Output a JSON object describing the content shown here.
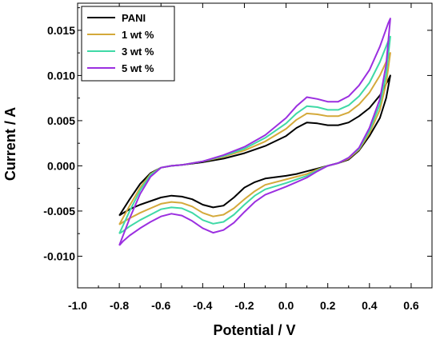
{
  "chart_data": {
    "type": "line",
    "xlabel": "Potential / V",
    "ylabel": "Current / A",
    "xlim": [
      -1.0,
      0.7
    ],
    "ylim": [
      -0.0135,
      0.018
    ],
    "x_ticks": [
      "-1.0",
      "-0.8",
      "-0.6",
      "-0.4",
      "-0.2",
      "0.0",
      "0.2",
      "0.4",
      "0.6"
    ],
    "y_ticks": [
      "-0.010",
      "-0.005",
      "0.000",
      "0.005",
      "0.010",
      "0.015"
    ],
    "grid": false,
    "legend_position": "top-left",
    "series": [
      {
        "name": "PANI",
        "color": "#000000",
        "points": [
          [
            -0.8,
            -0.0055
          ],
          [
            -0.75,
            -0.0037
          ],
          [
            -0.7,
            -0.002
          ],
          [
            -0.65,
            -0.0008
          ],
          [
            -0.6,
            -0.0002
          ],
          [
            -0.55,
            0.0
          ],
          [
            -0.5,
            0.0001
          ],
          [
            -0.4,
            0.0004
          ],
          [
            -0.3,
            0.0008
          ],
          [
            -0.2,
            0.0014
          ],
          [
            -0.1,
            0.0022
          ],
          [
            0.0,
            0.0033
          ],
          [
            0.05,
            0.0042
          ],
          [
            0.1,
            0.0048
          ],
          [
            0.15,
            0.0047
          ],
          [
            0.2,
            0.0045
          ],
          [
            0.25,
            0.0045
          ],
          [
            0.3,
            0.0048
          ],
          [
            0.35,
            0.0055
          ],
          [
            0.4,
            0.0064
          ],
          [
            0.45,
            0.0078
          ],
          [
            0.49,
            0.0095
          ],
          [
            0.5,
            0.01
          ],
          [
            0.48,
            0.0075
          ],
          [
            0.45,
            0.0053
          ],
          [
            0.4,
            0.0033
          ],
          [
            0.35,
            0.0017
          ],
          [
            0.3,
            0.0007
          ],
          [
            0.25,
            0.0003
          ],
          [
            0.2,
            0.0
          ],
          [
            0.15,
            -0.0003
          ],
          [
            0.1,
            -0.0006
          ],
          [
            0.05,
            -0.0009
          ],
          [
            0.0,
            -0.0011
          ],
          [
            -0.1,
            -0.0014
          ],
          [
            -0.15,
            -0.0018
          ],
          [
            -0.2,
            -0.0024
          ],
          [
            -0.25,
            -0.0035
          ],
          [
            -0.3,
            -0.0044
          ],
          [
            -0.35,
            -0.0046
          ],
          [
            -0.4,
            -0.0043
          ],
          [
            -0.45,
            -0.0037
          ],
          [
            -0.5,
            -0.0034
          ],
          [
            -0.55,
            -0.0033
          ],
          [
            -0.6,
            -0.0035
          ],
          [
            -0.65,
            -0.0039
          ],
          [
            -0.7,
            -0.0043
          ],
          [
            -0.75,
            -0.0048
          ],
          [
            -0.78,
            -0.0052
          ],
          [
            -0.8,
            -0.0055
          ]
        ]
      },
      {
        "name": "1 wt %",
        "color": "#d4a93a",
        "points": [
          [
            -0.8,
            -0.0065
          ],
          [
            -0.75,
            -0.0044
          ],
          [
            -0.7,
            -0.0024
          ],
          [
            -0.65,
            -0.0009
          ],
          [
            -0.6,
            -0.0002
          ],
          [
            -0.55,
            0.0
          ],
          [
            -0.5,
            0.0001
          ],
          [
            -0.4,
            0.0005
          ],
          [
            -0.3,
            0.001
          ],
          [
            -0.2,
            0.0017
          ],
          [
            -0.1,
            0.0027
          ],
          [
            0.0,
            0.0041
          ],
          [
            0.05,
            0.0051
          ],
          [
            0.1,
            0.0058
          ],
          [
            0.15,
            0.0057
          ],
          [
            0.2,
            0.0055
          ],
          [
            0.25,
            0.0055
          ],
          [
            0.3,
            0.0059
          ],
          [
            0.35,
            0.0068
          ],
          [
            0.4,
            0.0081
          ],
          [
            0.45,
            0.01
          ],
          [
            0.49,
            0.012
          ],
          [
            0.5,
            0.0125
          ],
          [
            0.48,
            0.0091
          ],
          [
            0.45,
            0.0062
          ],
          [
            0.4,
            0.0036
          ],
          [
            0.35,
            0.0018
          ],
          [
            0.3,
            0.0008
          ],
          [
            0.25,
            0.0003
          ],
          [
            0.2,
            0.0
          ],
          [
            0.15,
            -0.0004
          ],
          [
            0.1,
            -0.0009
          ],
          [
            0.05,
            -0.0012
          ],
          [
            0.0,
            -0.0015
          ],
          [
            -0.1,
            -0.0021
          ],
          [
            -0.15,
            -0.0028
          ],
          [
            -0.2,
            -0.0037
          ],
          [
            -0.25,
            -0.0047
          ],
          [
            -0.3,
            -0.0054
          ],
          [
            -0.35,
            -0.0056
          ],
          [
            -0.4,
            -0.0052
          ],
          [
            -0.45,
            -0.0045
          ],
          [
            -0.5,
            -0.0041
          ],
          [
            -0.55,
            -0.004
          ],
          [
            -0.6,
            -0.0042
          ],
          [
            -0.65,
            -0.0047
          ],
          [
            -0.7,
            -0.0052
          ],
          [
            -0.75,
            -0.0058
          ],
          [
            -0.78,
            -0.0062
          ],
          [
            -0.8,
            -0.0065
          ]
        ]
      },
      {
        "name": "3 wt %",
        "color": "#3fd9a6",
        "points": [
          [
            -0.8,
            -0.0075
          ],
          [
            -0.75,
            -0.005
          ],
          [
            -0.7,
            -0.0027
          ],
          [
            -0.65,
            -0.001
          ],
          [
            -0.6,
            -0.0002
          ],
          [
            -0.55,
            0.0
          ],
          [
            -0.5,
            0.0001
          ],
          [
            -0.4,
            0.0005
          ],
          [
            -0.3,
            0.0011
          ],
          [
            -0.2,
            0.0019
          ],
          [
            -0.1,
            0.0031
          ],
          [
            0.0,
            0.0047
          ],
          [
            0.05,
            0.0058
          ],
          [
            0.1,
            0.0066
          ],
          [
            0.15,
            0.0065
          ],
          [
            0.2,
            0.0062
          ],
          [
            0.25,
            0.0062
          ],
          [
            0.3,
            0.0067
          ],
          [
            0.35,
            0.0077
          ],
          [
            0.4,
            0.0092
          ],
          [
            0.45,
            0.0115
          ],
          [
            0.49,
            0.0138
          ],
          [
            0.5,
            0.0143
          ],
          [
            0.48,
            0.0101
          ],
          [
            0.45,
            0.0068
          ],
          [
            0.4,
            0.0039
          ],
          [
            0.35,
            0.0019
          ],
          [
            0.3,
            0.0009
          ],
          [
            0.25,
            0.0003
          ],
          [
            0.2,
            0.0
          ],
          [
            0.15,
            -0.0005
          ],
          [
            0.1,
            -0.0011
          ],
          [
            0.05,
            -0.0015
          ],
          [
            0.0,
            -0.0019
          ],
          [
            -0.1,
            -0.0026
          ],
          [
            -0.15,
            -0.0033
          ],
          [
            -0.2,
            -0.0043
          ],
          [
            -0.25,
            -0.0054
          ],
          [
            -0.3,
            -0.0062
          ],
          [
            -0.35,
            -0.0064
          ],
          [
            -0.4,
            -0.006
          ],
          [
            -0.45,
            -0.0052
          ],
          [
            -0.5,
            -0.0047
          ],
          [
            -0.55,
            -0.0046
          ],
          [
            -0.6,
            -0.0048
          ],
          [
            -0.65,
            -0.0054
          ],
          [
            -0.7,
            -0.006
          ],
          [
            -0.75,
            -0.0067
          ],
          [
            -0.78,
            -0.0072
          ],
          [
            -0.8,
            -0.0075
          ]
        ]
      },
      {
        "name": "5 wt %",
        "color": "#9b2fe0",
        "points": [
          [
            -0.8,
            -0.0088
          ],
          [
            -0.75,
            -0.0058
          ],
          [
            -0.7,
            -0.0031
          ],
          [
            -0.65,
            -0.0012
          ],
          [
            -0.6,
            -0.0002
          ],
          [
            -0.55,
            0.0
          ],
          [
            -0.5,
            0.0001
          ],
          [
            -0.4,
            0.0005
          ],
          [
            -0.3,
            0.0012
          ],
          [
            -0.2,
            0.0021
          ],
          [
            -0.1,
            0.0034
          ],
          [
            0.0,
            0.0053
          ],
          [
            0.05,
            0.0066
          ],
          [
            0.1,
            0.0076
          ],
          [
            0.15,
            0.0074
          ],
          [
            0.2,
            0.0071
          ],
          [
            0.25,
            0.0071
          ],
          [
            0.3,
            0.0077
          ],
          [
            0.35,
            0.0089
          ],
          [
            0.4,
            0.0106
          ],
          [
            0.45,
            0.0132
          ],
          [
            0.49,
            0.0158
          ],
          [
            0.5,
            0.0163
          ],
          [
            0.48,
            0.0112
          ],
          [
            0.45,
            0.0074
          ],
          [
            0.4,
            0.0042
          ],
          [
            0.35,
            0.002
          ],
          [
            0.3,
            0.0009
          ],
          [
            0.25,
            0.0003
          ],
          [
            0.2,
            0.0
          ],
          [
            0.15,
            -0.0006
          ],
          [
            0.1,
            -0.0013
          ],
          [
            0.05,
            -0.0018
          ],
          [
            0.0,
            -0.0023
          ],
          [
            -0.1,
            -0.0032
          ],
          [
            -0.15,
            -0.004
          ],
          [
            -0.2,
            -0.0051
          ],
          [
            -0.25,
            -0.0063
          ],
          [
            -0.3,
            -0.0071
          ],
          [
            -0.35,
            -0.0074
          ],
          [
            -0.4,
            -0.0069
          ],
          [
            -0.45,
            -0.0061
          ],
          [
            -0.5,
            -0.0055
          ],
          [
            -0.55,
            -0.0053
          ],
          [
            -0.6,
            -0.0056
          ],
          [
            -0.65,
            -0.0062
          ],
          [
            -0.7,
            -0.0069
          ],
          [
            -0.75,
            -0.0077
          ],
          [
            -0.78,
            -0.0083
          ],
          [
            -0.8,
            -0.0088
          ]
        ]
      }
    ]
  }
}
